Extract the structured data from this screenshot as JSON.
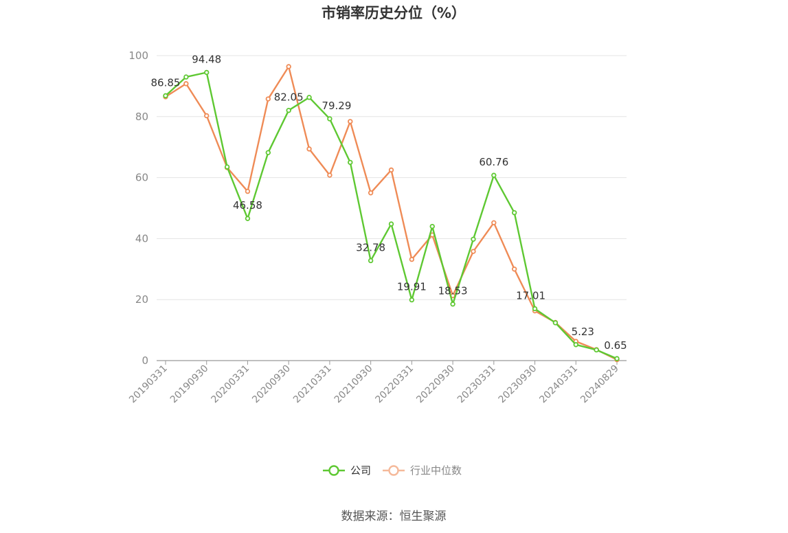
{
  "source_text": "数据来源：恒生聚源",
  "chart_data": {
    "type": "line",
    "title": "市销率历史分位（%）",
    "xlabel": "",
    "ylabel": "",
    "ylim": [
      0,
      100
    ],
    "yticks": [
      0,
      20,
      40,
      60,
      80,
      100
    ],
    "x": [
      "20190331",
      "20190630",
      "20190930",
      "20191231",
      "20200331",
      "20200630",
      "20200930",
      "20201231",
      "20210331",
      "20210630",
      "20210930",
      "20211231",
      "20220331",
      "20220630",
      "20220930",
      "20221231",
      "20230331",
      "20230630",
      "20230930",
      "20231231",
      "20240331",
      "20240630",
      "20240829"
    ],
    "xtick_labels": [
      "20190331",
      "20190930",
      "20200331",
      "20200930",
      "20210331",
      "20210930",
      "20220331",
      "20220930",
      "20230331",
      "20230930",
      "20240331",
      "20240829"
    ],
    "xtick_indices": [
      0,
      2,
      4,
      6,
      8,
      10,
      12,
      14,
      16,
      18,
      20,
      22
    ],
    "grid": true,
    "legend_position": "bottom-center",
    "series": [
      {
        "name": "公司",
        "color": "#5ec832",
        "values": [
          86.85,
          93.0,
          94.48,
          63.5,
          46.58,
          68.2,
          82.05,
          86.3,
          79.29,
          65.0,
          32.78,
          44.8,
          19.91,
          44.0,
          18.53,
          39.8,
          60.76,
          48.5,
          17.01,
          12.4,
          5.23,
          3.5,
          0.65
        ],
        "labels": {
          "0": "86.85",
          "2": "94.48",
          "4": "46.58",
          "6": "82.05",
          "8": "79.29",
          "10": "32.78",
          "12": "19.91",
          "14": "18.53",
          "16": "60.76",
          "18": "17.01",
          "20": "5.23",
          "22": "0.65"
        }
      },
      {
        "name": "行业中位数",
        "color": "#ef8b56",
        "values": [
          86.5,
          90.8,
          80.3,
          63.3,
          55.5,
          85.8,
          96.4,
          69.4,
          60.8,
          78.4,
          55.0,
          62.5,
          33.2,
          41.2,
          21.3,
          35.8,
          45.2,
          30.0,
          16.3,
          12.5,
          6.3,
          3.6,
          0.3
        ]
      }
    ]
  }
}
